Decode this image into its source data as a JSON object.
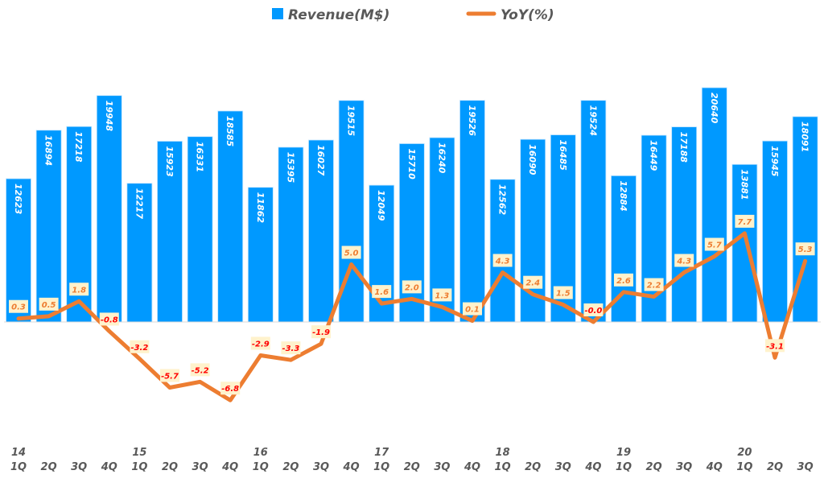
{
  "chart_data": {
    "type": "bar+line",
    "legend": {
      "placement": "top-center"
    },
    "colors": {
      "revenue": "#0099FF",
      "yoy": "#ED7D31",
      "yoy_negative_label": "#FF0000",
      "yoy_label_bg": "#FFF2CC"
    },
    "grid": false,
    "categories": [
      {
        "year": "14",
        "quarter": "1Q"
      },
      {
        "year": "",
        "quarter": "2Q"
      },
      {
        "year": "",
        "quarter": "3Q"
      },
      {
        "year": "",
        "quarter": "4Q"
      },
      {
        "year": "15",
        "quarter": "1Q"
      },
      {
        "year": "",
        "quarter": "2Q"
      },
      {
        "year": "",
        "quarter": "3Q"
      },
      {
        "year": "",
        "quarter": "4Q"
      },
      {
        "year": "16",
        "quarter": "1Q"
      },
      {
        "year": "",
        "quarter": "2Q"
      },
      {
        "year": "",
        "quarter": "3Q"
      },
      {
        "year": "",
        "quarter": "4Q"
      },
      {
        "year": "17",
        "quarter": "1Q"
      },
      {
        "year": "",
        "quarter": "2Q"
      },
      {
        "year": "",
        "quarter": "3Q"
      },
      {
        "year": "",
        "quarter": "4Q"
      },
      {
        "year": "18",
        "quarter": "1Q"
      },
      {
        "year": "",
        "quarter": "2Q"
      },
      {
        "year": "",
        "quarter": "3Q"
      },
      {
        "year": "",
        "quarter": "4Q"
      },
      {
        "year": "19",
        "quarter": "1Q"
      },
      {
        "year": "",
        "quarter": "2Q"
      },
      {
        "year": "",
        "quarter": "3Q"
      },
      {
        "year": "",
        "quarter": "4Q"
      },
      {
        "year": "20",
        "quarter": "1Q"
      },
      {
        "year": "",
        "quarter": "2Q"
      },
      {
        "year": "",
        "quarter": "3Q"
      }
    ],
    "series": [
      {
        "name": "Revenue(M$)",
        "type": "bar",
        "values": [
          12623,
          16894,
          17218,
          19948,
          12217,
          15923,
          16331,
          18585,
          11862,
          15395,
          16027,
          19515,
          12049,
          15710,
          16240,
          19526,
          12562,
          16090,
          16485,
          19524,
          12884,
          16449,
          17188,
          20640,
          13881,
          15945,
          18091
        ]
      },
      {
        "name": "YoY(%)",
        "type": "line",
        "values": [
          0.3,
          0.5,
          1.8,
          -0.8,
          -3.2,
          -5.7,
          -5.2,
          -6.8,
          -2.9,
          -3.3,
          -1.9,
          5.0,
          1.6,
          2.0,
          1.3,
          0.1,
          4.3,
          2.4,
          1.5,
          -0.0,
          2.6,
          2.2,
          4.3,
          5.7,
          7.7,
          -3.1,
          5.3
        ],
        "labels": [
          "0.3",
          "0.5",
          "1.8",
          "-0.8",
          "-3.2",
          "-5.7",
          "-5.2",
          "-6.8",
          "-2.9",
          "-3.3",
          "-1.9",
          "5.0",
          "1.6",
          "2.0",
          "1.3",
          "0.1",
          "4.3",
          "2.4",
          "1.5",
          "-0.0",
          "2.6",
          "2.2",
          "4.3",
          "5.7",
          "7.7",
          "-3.1",
          "5.3"
        ]
      }
    ]
  }
}
